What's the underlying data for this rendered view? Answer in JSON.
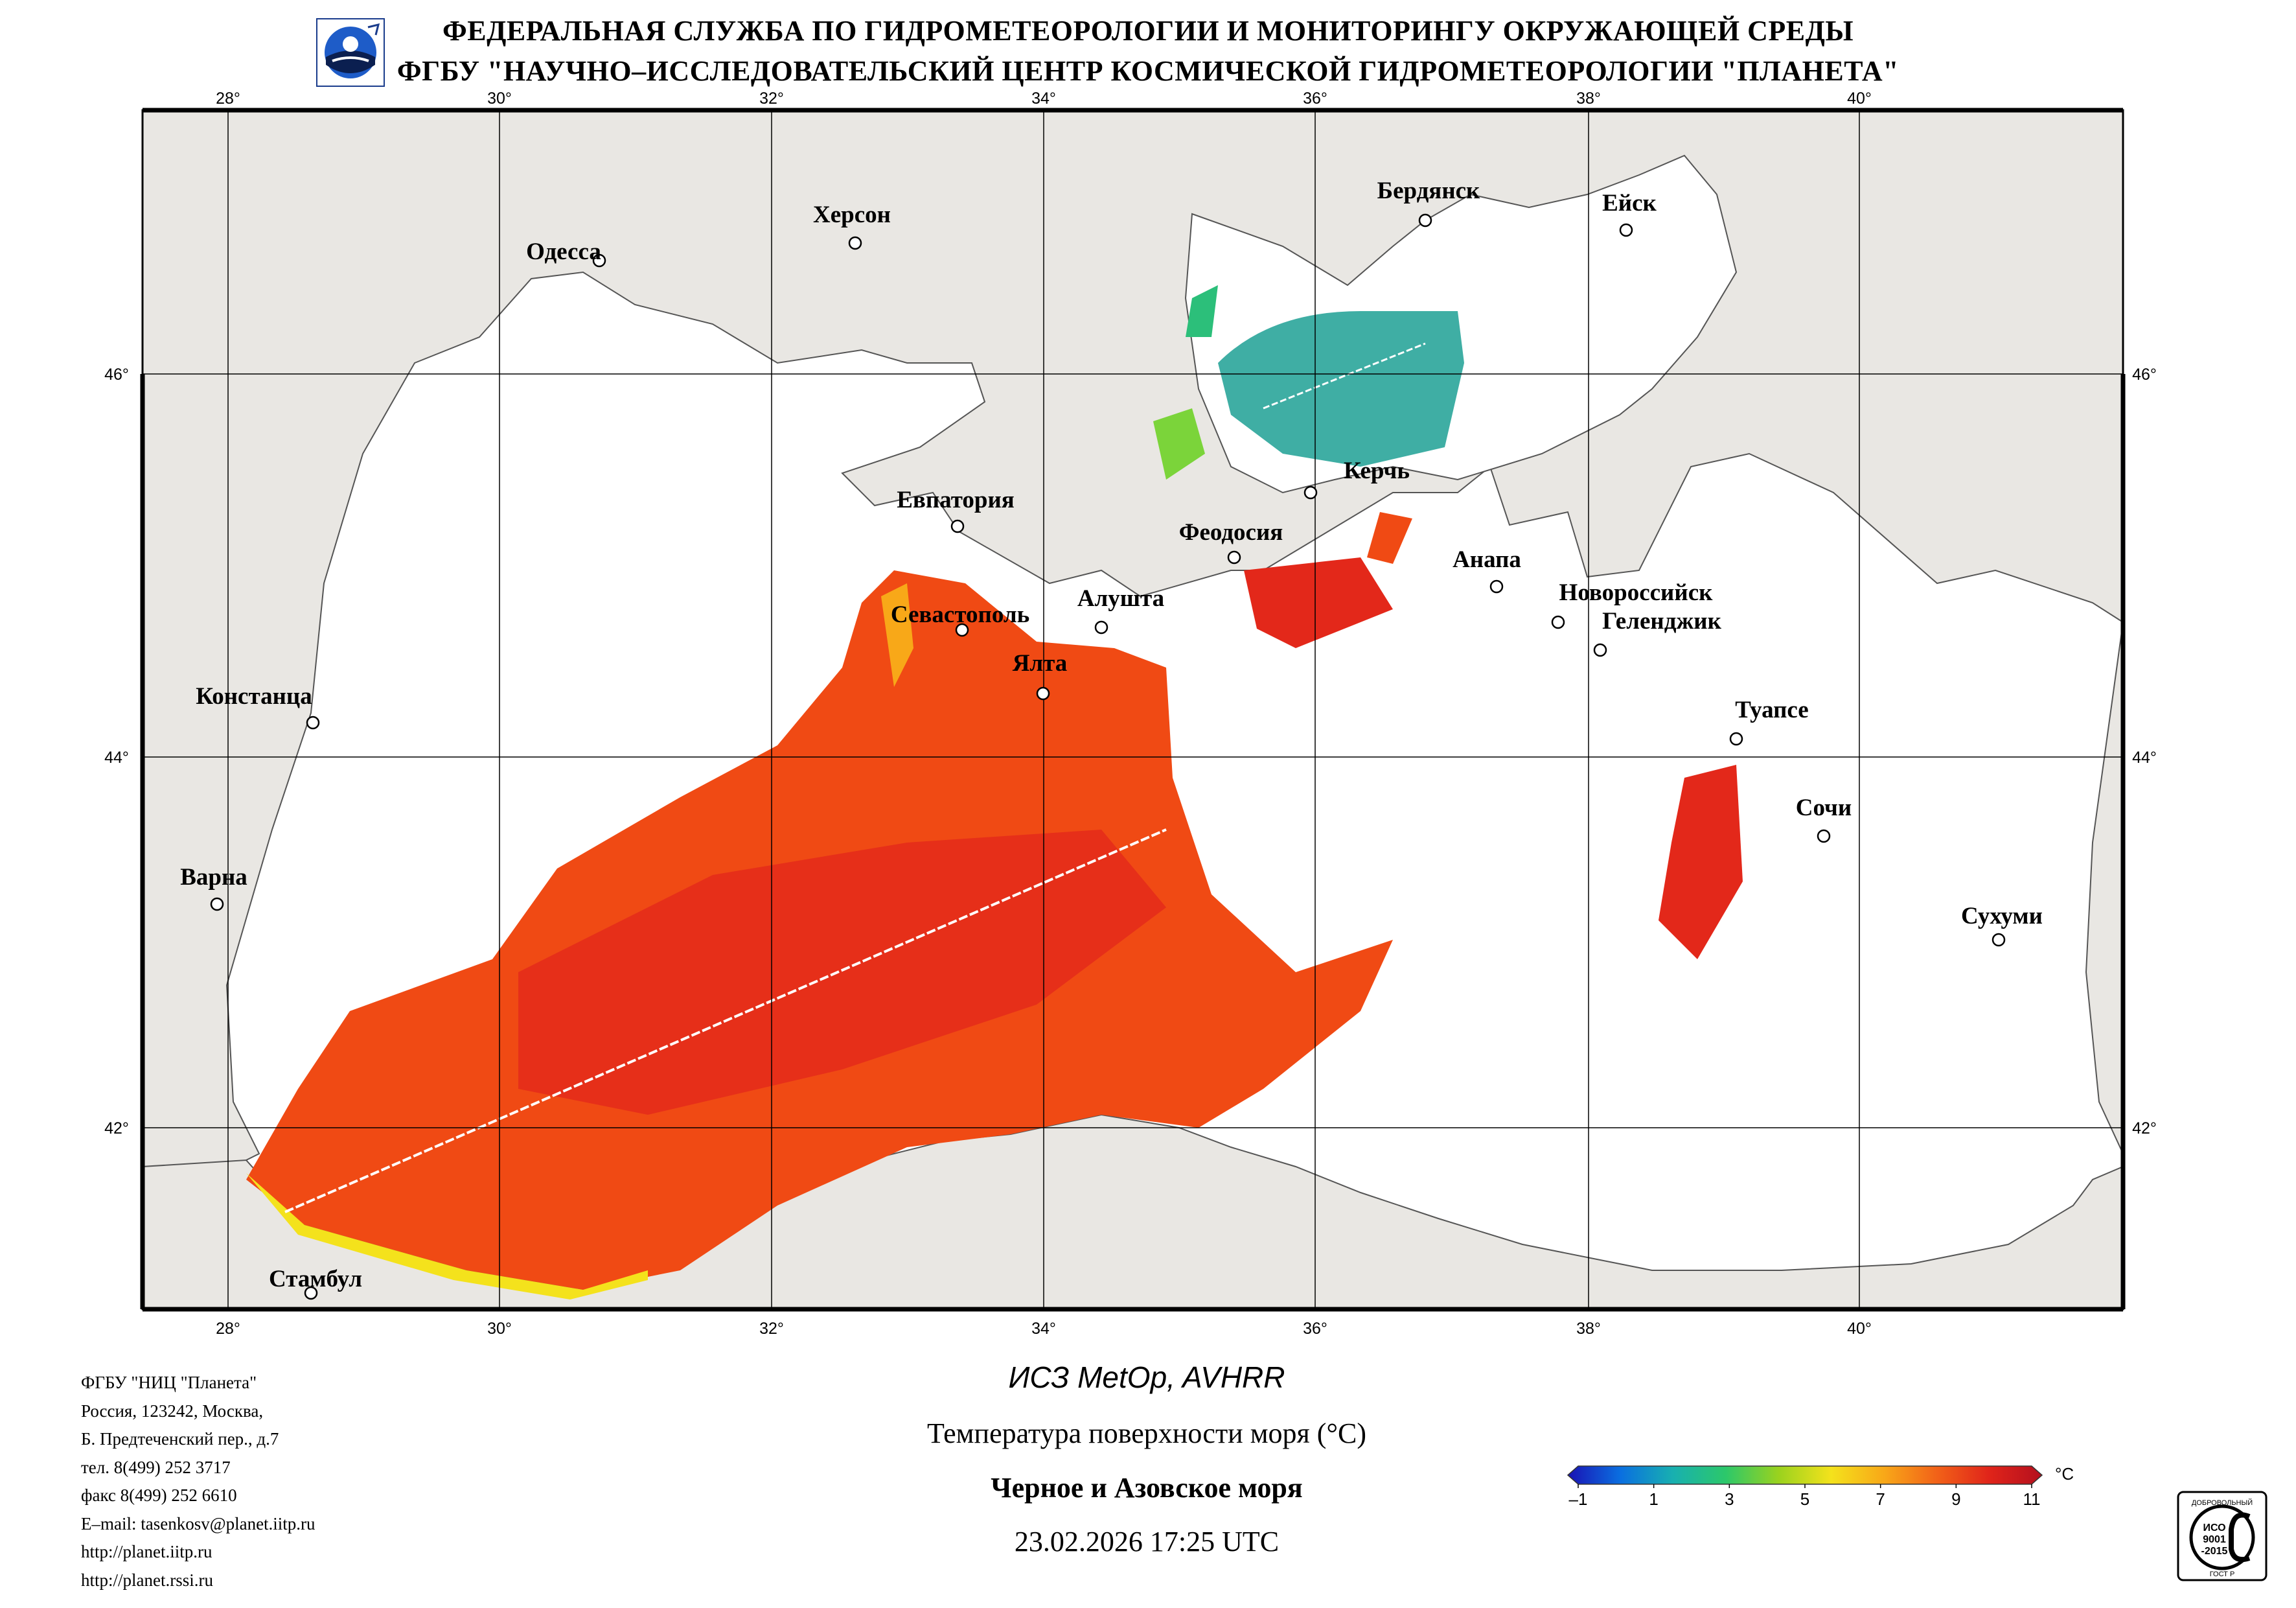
{
  "header": {
    "line1": "ФЕДЕРАЛЬНАЯ СЛУЖБА ПО ГИДРОМЕТЕОРОЛОГИИ И МОНИТОРИНГУ ОКРУЖАЮЩЕЙ СРЕДЫ",
    "line2": "ФГБУ \"НАУЧНО–ИССЛЕДОВАТЕЛЬСКИЙ ЦЕНТР КОСМИЧЕСКОЙ ГИДРОМЕТЕОРОЛОГИИ \"ПЛАНЕТА\""
  },
  "map": {
    "lon_labels": [
      "28°",
      "30°",
      "32°",
      "34°",
      "36°",
      "38°",
      "40°"
    ],
    "lat_labels": [
      "46°",
      "44°",
      "42°"
    ],
    "cities": [
      {
        "name": "Одесса"
      },
      {
        "name": "Херсон"
      },
      {
        "name": "Бердянск"
      },
      {
        "name": "Ейск"
      },
      {
        "name": "Евпатория"
      },
      {
        "name": "Керчь"
      },
      {
        "name": "Феодосия"
      },
      {
        "name": "Анапа"
      },
      {
        "name": "Севастополь"
      },
      {
        "name": "Алушта"
      },
      {
        "name": "Новороссийск"
      },
      {
        "name": "Геленджик"
      },
      {
        "name": "Ялта"
      },
      {
        "name": "Констанца"
      },
      {
        "name": "Туапсе"
      },
      {
        "name": "Сочи"
      },
      {
        "name": "Варна"
      },
      {
        "name": "Сухуми"
      },
      {
        "name": "Стамбул"
      }
    ],
    "colors": {
      "land": "#e9e7e3",
      "sea": "#ffffff",
      "sst_main": "#f04a14",
      "sst_deep": "#e3281a",
      "azov": "#2aa59a"
    }
  },
  "footer": {
    "lines": [
      "ФГБУ \"НИЦ \"Планета\"",
      "Россия, 123242, Москва,",
      "Б. Предтеченский пер., д.7",
      "тел. 8(499) 252 3717",
      "факс 8(499) 252 6610",
      "E–mail: tasenkosv@planet.iitp.ru",
      "http://planet.iitp.ru",
      "http://planet.rssi.ru"
    ]
  },
  "product": {
    "satellite": "ИСЗ MetOp, AVHRR",
    "parameter": "Температура поверхности моря (°C)",
    "region": "Черное и Азовское моря",
    "datetime": "23.02.2026 17:25 UTC"
  },
  "colorbar": {
    "unit": "°C",
    "ticks": [
      "–1",
      "1",
      "3",
      "5",
      "7",
      "9",
      "11"
    ],
    "min": -1,
    "max": 11,
    "colors": [
      "#1a12b4",
      "#0a6fe0",
      "#18b0b0",
      "#2cc86a",
      "#9ad21e",
      "#f4e21c",
      "#f8a818",
      "#f26218",
      "#e0241a",
      "#b4101e"
    ]
  },
  "badge": {
    "line1": "ДОБРОВОЛЬНЫЙ",
    "line2": "ИСО",
    "line3": "9001",
    "line4": "-2015",
    "line5": "ГОСТ Р"
  }
}
